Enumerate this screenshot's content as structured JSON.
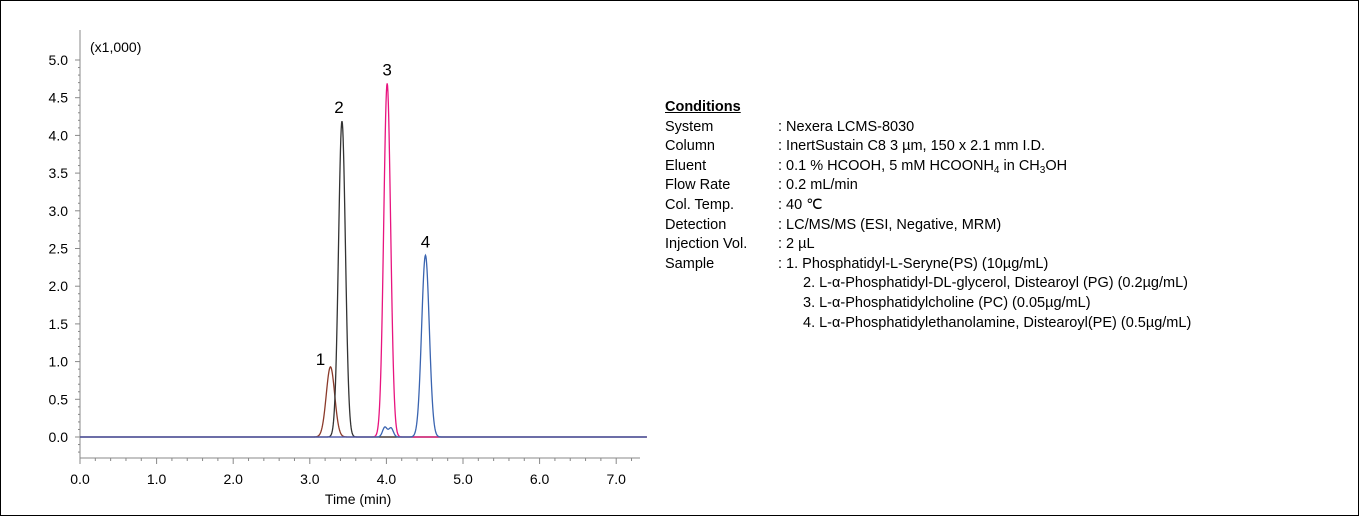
{
  "chart_data": {
    "type": "line",
    "xlabel": "Time (min)",
    "yunit_label": "(x1,000)",
    "xlim": [
      0.0,
      7.4
    ],
    "ylim": [
      0.0,
      5.0
    ],
    "x_ticks": [
      "0.0",
      "1.0",
      "2.0",
      "3.0",
      "4.0",
      "5.0",
      "6.0",
      "7.0"
    ],
    "y_ticks": [
      "0.0",
      "0.5",
      "1.0",
      "1.5",
      "2.0",
      "2.5",
      "3.0",
      "3.5",
      "4.0",
      "4.5",
      "5.0"
    ],
    "series": [
      {
        "peak_label": "1",
        "color": "#8b3a2a",
        "peaks": [
          {
            "rt": 3.27,
            "height": 0.93,
            "width": 0.055
          }
        ]
      },
      {
        "peak_label": "2",
        "color": "#333333",
        "peaks": [
          {
            "rt": 3.42,
            "height": 4.19,
            "width": 0.045
          }
        ]
      },
      {
        "peak_label": "3",
        "color": "#e8147f",
        "peaks": [
          {
            "rt": 4.01,
            "height": 4.69,
            "width": 0.045
          }
        ]
      },
      {
        "peak_label": "4",
        "color": "#3a64b0",
        "peaks": [
          {
            "rt": 4.51,
            "height": 2.41,
            "width": 0.05
          },
          {
            "rt": 3.98,
            "height": 0.13,
            "width": 0.03
          },
          {
            "rt": 4.06,
            "height": 0.12,
            "width": 0.03
          }
        ]
      }
    ],
    "grid": false
  },
  "conditions": {
    "title": "Conditions",
    "rows": [
      {
        "key": "System",
        "value": ": Nexera LCMS-8030"
      },
      {
        "key": "Column",
        "value": ": InertSustain C8  3 µm, 150 x 2.1 mm I.D."
      },
      {
        "key": "Eluent",
        "value_parts": [
          ": 0.1 % HCOOH, 5 mM HCOONH",
          "4",
          " in CH",
          "3",
          "OH"
        ]
      },
      {
        "key": "Flow Rate",
        "value": ": 0.2 mL/min"
      },
      {
        "key": "Col. Temp.",
        "value": ": 40 ℃"
      },
      {
        "key": "Detection",
        "value": ": LC/MS/MS (ESI, Negative, MRM)"
      },
      {
        "key": "Injection Vol.",
        "value": ": 2 µL"
      },
      {
        "key": "Sample",
        "value": ": 1. Phosphatidyl-L-Seryne(PS) (10µg/mL)"
      }
    ],
    "samples": [
      "2. L-α-Phosphatidyl-DL-glycerol, Distearoyl (PG) (0.2µg/mL)",
      "3. L-α-Phosphatidylcholine (PC) (0.05µg/mL)",
      "4. L-α-Phosphatidylethanolamine, Distearoyl(PE) (0.5µg/mL)"
    ]
  }
}
